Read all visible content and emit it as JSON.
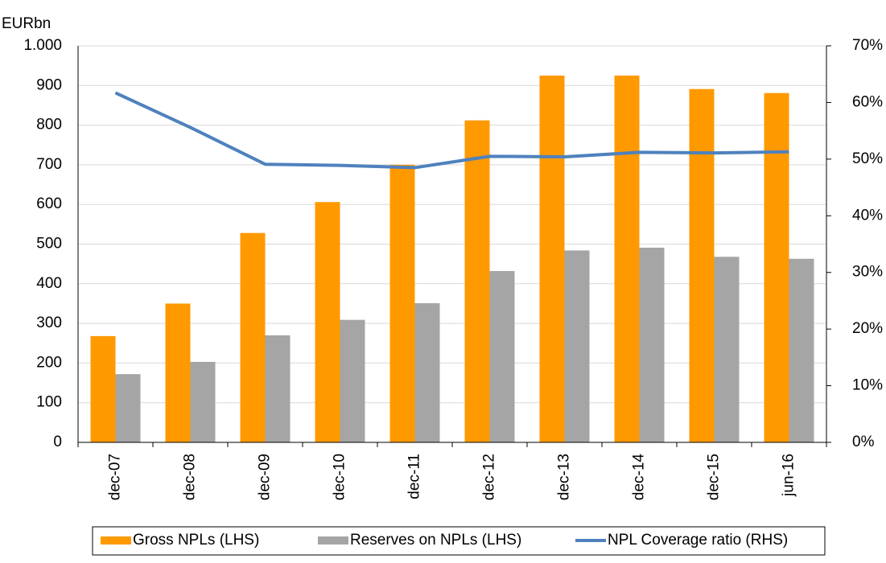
{
  "chart_data": {
    "type": "bar-line",
    "y_label": "EURbn",
    "categories": [
      "dec-07",
      "dec-08",
      "dec-09",
      "dec-10",
      "dec-11",
      "dec-12",
      "dec-13",
      "dec-14",
      "dec-15",
      "jun-16"
    ],
    "series": [
      {
        "name": "Gross NPLs (LHS)",
        "type": "bar",
        "color": "#ff9900",
        "values": [
          268,
          350,
          528,
          606,
          700,
          812,
          925,
          925,
          891,
          881
        ]
      },
      {
        "name": "Reserves on NPLs (LHS)",
        "type": "bar",
        "color": "#a5a5a5",
        "values": [
          172,
          203,
          270,
          309,
          351,
          432,
          484,
          491,
          468,
          463
        ]
      },
      {
        "name": "NPL Coverage ratio (RHS)",
        "type": "line",
        "axis": "y2",
        "color": "#4f81bd",
        "values": [
          61.7,
          55.6,
          49.1,
          48.9,
          48.5,
          50.5,
          50.4,
          51.2,
          51.1,
          51.3
        ]
      }
    ],
    "ylim": [
      0,
      1000
    ],
    "yticks": [
      0,
      100,
      200,
      300,
      400,
      500,
      600,
      700,
      800,
      900,
      {
        "value": 1000,
        "label": "1.000"
      }
    ],
    "y2lim": [
      0,
      70
    ],
    "y2ticks": [
      {
        "value": 0,
        "label": "0%"
      },
      {
        "value": 10,
        "label": "10%"
      },
      {
        "value": 20,
        "label": "20%"
      },
      {
        "value": 30,
        "label": "30%"
      },
      {
        "value": 40,
        "label": "40%"
      },
      {
        "value": 50,
        "label": "50%"
      },
      {
        "value": 60,
        "label": "60%"
      },
      {
        "value": 70,
        "label": "70%"
      }
    ],
    "grid": true,
    "legend": "bottom"
  }
}
